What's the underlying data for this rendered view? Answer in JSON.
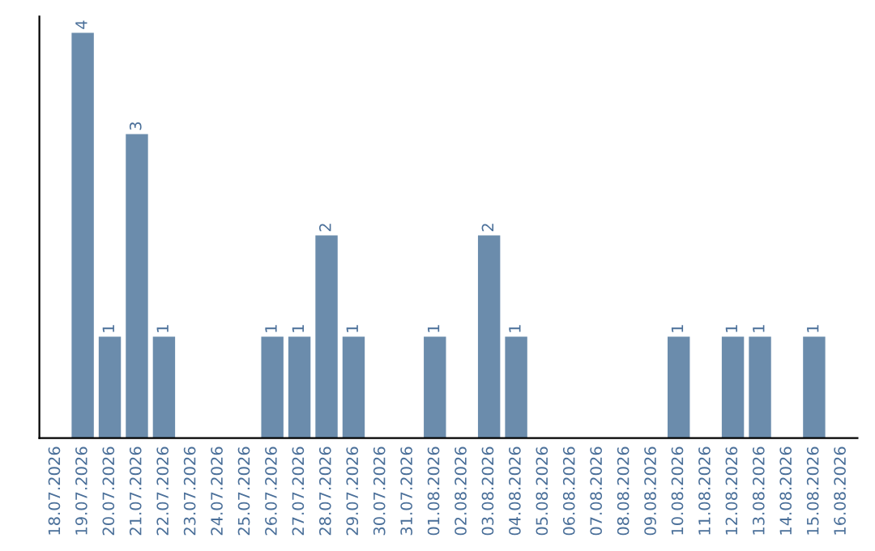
{
  "chart_data": {
    "type": "bar",
    "categories": [
      "18.07.2026",
      "19.07.2026",
      "20.07.2026",
      "21.07.2026",
      "22.07.2026",
      "23.07.2026",
      "24.07.2026",
      "25.07.2026",
      "26.07.2026",
      "27.07.2026",
      "28.07.2026",
      "29.07.2026",
      "30.07.2026",
      "31.07.2026",
      "01.08.2026",
      "02.08.2026",
      "03.08.2026",
      "04.08.2026",
      "05.08.2026",
      "06.08.2026",
      "07.08.2026",
      "08.08.2026",
      "09.08.2026",
      "10.08.2026",
      "11.08.2026",
      "12.08.2026",
      "13.08.2026",
      "14.08.2026",
      "15.08.2026",
      "16.08.2026"
    ],
    "values": [
      0,
      4,
      1,
      3,
      1,
      0,
      0,
      0,
      1,
      1,
      2,
      1,
      0,
      0,
      1,
      0,
      2,
      1,
      0,
      0,
      0,
      0,
      0,
      1,
      0,
      1,
      1,
      0,
      1,
      0
    ],
    "value_labels": [
      null,
      "4",
      "1",
      "3",
      "1",
      null,
      null,
      null,
      "1",
      "1",
      "2",
      "1",
      null,
      null,
      "1",
      null,
      "2",
      "1",
      null,
      null,
      null,
      null,
      null,
      "1",
      null,
      "1",
      "1",
      null,
      "1",
      null
    ],
    "color": "#6b8cac",
    "tick_labels": "x",
    "grid": false,
    "legend": false
  }
}
